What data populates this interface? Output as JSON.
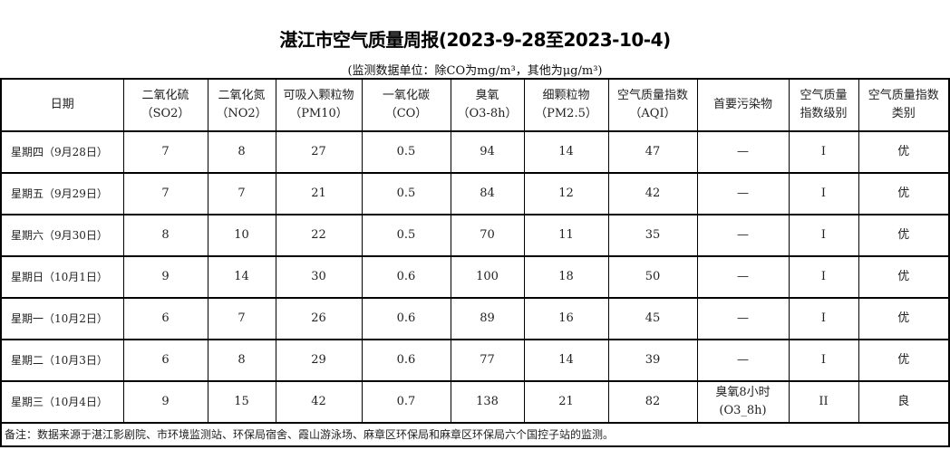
{
  "title": "湛江市空气质量周报(2023-9-28至2023-10-4)",
  "unit_note": "(监测数据单位：除CO为mg/m³，其他为μg/m³)",
  "headers": [
    [
      "日期",
      ""
    ],
    [
      "二氧化硫",
      "（SO2）"
    ],
    [
      "二氧化氮",
      "（NO2）"
    ],
    [
      "可吸入颗粒物",
      "（PM10）"
    ],
    [
      "一氧化碳",
      "（CO）"
    ],
    [
      "臭氧",
      "（O3-8h）"
    ],
    [
      "细颗粒物",
      "（PM2.5）"
    ],
    [
      "空气质量指数",
      "（AQI）"
    ],
    [
      "首要污染物",
      ""
    ],
    [
      "空气质量",
      "指数级别"
    ],
    [
      "空气质量指数",
      "类别"
    ]
  ],
  "rows": [
    [
      "星期四（9月28日）",
      "7",
      "8",
      "27",
      "0.5",
      "94",
      "14",
      "47",
      "—",
      "I",
      "优"
    ],
    [
      "星期五（9月29日）",
      "7",
      "7",
      "21",
      "0.5",
      "84",
      "12",
      "42",
      "—",
      "I",
      "优"
    ],
    [
      "星期六（9月30日）",
      "8",
      "10",
      "22",
      "0.5",
      "70",
      "11",
      "35",
      "—",
      "I",
      "优"
    ],
    [
      "星期日（10月1日）",
      "9",
      "14",
      "30",
      "0.6",
      "100",
      "18",
      "50",
      "—",
      "I",
      "优"
    ],
    [
      "星期一（10月2日）",
      "6",
      "7",
      "26",
      "0.6",
      "89",
      "16",
      "45",
      "—",
      "I",
      "优"
    ],
    [
      "星期二（10月3日）",
      "6",
      "8",
      "29",
      "0.6",
      "77",
      "14",
      "39",
      "—",
      "I",
      "优"
    ],
    [
      "星期三（10月4日）",
      "9",
      "15",
      "42",
      "0.7",
      "138",
      "21",
      "82",
      "臭氧8小时\n(O3_8h)",
      "II",
      "良"
    ]
  ],
  "footer": "备注：数据来源于湛江影剧院、市环境监测站、环保局宿舍、霞山游泳场、麻章区环保局和麻章区环保局六个国控子站的监测。"
}
